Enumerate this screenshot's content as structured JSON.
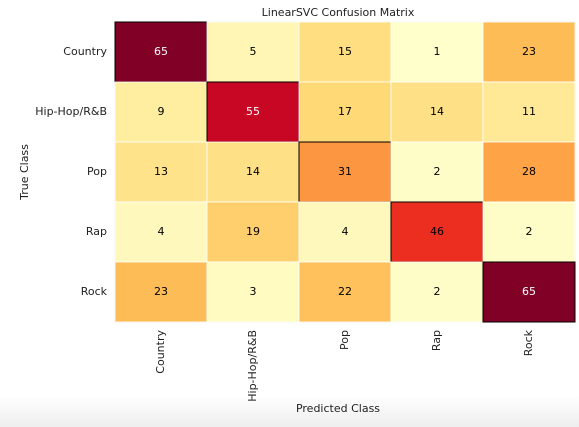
{
  "chart_data": {
    "type": "heatmap",
    "title": "LinearSVC Confusion Matrix",
    "x_label": "Predicted Class",
    "y_label": "True Class",
    "x_categories": [
      "Country",
      "Hip-Hop/R&B",
      "Pop",
      "Rap",
      "Rock"
    ],
    "y_categories": [
      "Country",
      "Hip-Hop/R&B",
      "Pop",
      "Rap",
      "Rock"
    ],
    "values": [
      [
        65,
        5,
        15,
        1,
        23
      ],
      [
        9,
        55,
        17,
        14,
        11
      ],
      [
        13,
        14,
        31,
        2,
        28
      ],
      [
        4,
        19,
        4,
        46,
        2
      ],
      [
        23,
        3,
        22,
        2,
        65
      ]
    ],
    "colormap": "YlOrRd"
  }
}
